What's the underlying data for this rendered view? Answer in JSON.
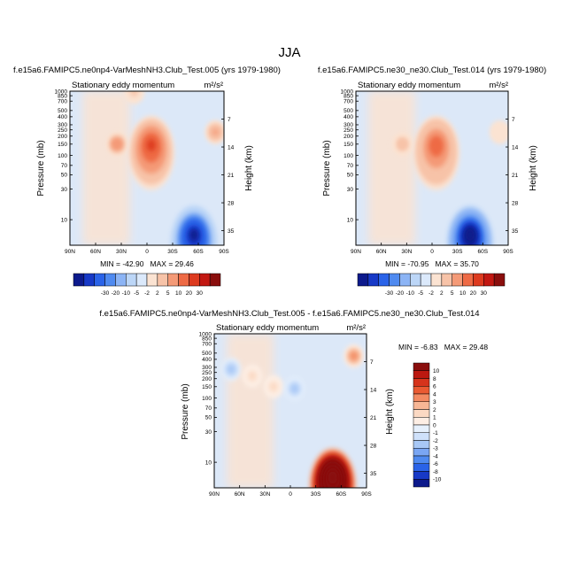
{
  "figure": {
    "title": "JJA"
  },
  "colors": {
    "diverging_scale": [
      "#0d1a8c",
      "#1739c7",
      "#2a63e8",
      "#4f8af0",
      "#8cb4f5",
      "#bcd6f7",
      "#dbe9fb",
      "#fbe3d2",
      "#f7c3a8",
      "#f49a77",
      "#ee6a45",
      "#dd3a1f",
      "#c21812",
      "#8a0e0d"
    ],
    "diff_scale": [
      "#0d1a8c",
      "#1739c7",
      "#2a63e8",
      "#4f8af0",
      "#7aa6f3",
      "#a8c8f6",
      "#cfe1fa",
      "#e6f0fc",
      "#fdeee4",
      "#fbd9c3",
      "#f7b695",
      "#f38a62",
      "#ea5a32",
      "#d6341c",
      "#bb1810",
      "#8a0e0d"
    ]
  },
  "chart_data": [
    {
      "type": "heatmap",
      "title": "f.e15a6.FAMIPC5.ne0np4-VarMeshNH3.Club_Test.005 (yrs 1979-1980)",
      "subtitle_left": "Stationary eddy momentum",
      "units": "m²/s²",
      "xlabel": "",
      "ylabel": "Pressure (mb)",
      "ylabel_right": "Height (km)",
      "x_ticks": [
        "90N",
        "60N",
        "30N",
        "0",
        "30S",
        "60S",
        "90S"
      ],
      "x_range": [
        90,
        -90
      ],
      "y_ticks": [
        "10",
        "30",
        "50",
        "70",
        "100",
        "150",
        "200",
        "250",
        "300",
        "400",
        "500",
        "700",
        "850",
        "1000"
      ],
      "y_ticks_right": [
        "35",
        "28",
        "21",
        "14",
        "7"
      ],
      "y_range_mb": [
        1000,
        4
      ],
      "min": -42.9,
      "max": 29.46,
      "stats_text": "MIN = -42.90   MAX = 29.46",
      "colorbar_labels": [
        "-30",
        "-20",
        "-10",
        "-5",
        "-2",
        "2",
        "5",
        "10",
        "20",
        "30"
      ],
      "features": [
        {
          "lat": -55,
          "p": 6,
          "value": -40
        },
        {
          "lat": -5,
          "p": 150,
          "value": 29
        },
        {
          "lat": 35,
          "p": 150,
          "value": 18
        },
        {
          "lat": -80,
          "p": 230,
          "value": 15
        },
        {
          "lat": 15,
          "p": 960,
          "value": 8
        }
      ]
    },
    {
      "type": "heatmap",
      "title": "f.e15a6.FAMIPC5.ne30_ne30.Club_Test.014 (yrs 1979-1980)",
      "subtitle_left": "Stationary eddy momentum",
      "units": "m²/s²",
      "xlabel": "",
      "ylabel": "Pressure (mb)",
      "ylabel_right": "Height (km)",
      "x_ticks": [
        "90N",
        "60N",
        "30N",
        "0",
        "30S",
        "60S",
        "90S"
      ],
      "x_range": [
        90,
        -90
      ],
      "y_ticks": [
        "10",
        "30",
        "50",
        "70",
        "100",
        "150",
        "200",
        "250",
        "300",
        "400",
        "500",
        "700",
        "850",
        "1000"
      ],
      "y_ticks_right": [
        "35",
        "28",
        "21",
        "14",
        "7"
      ],
      "y_range_mb": [
        1000,
        4
      ],
      "min": -70.95,
      "max": 35.7,
      "stats_text": "MIN = -70.95   MAX = 35.70",
      "colorbar_labels": [
        "-30",
        "-20",
        "-10",
        "-5",
        "-2",
        "2",
        "5",
        "10",
        "20",
        "30"
      ],
      "features": [
        {
          "lat": -45,
          "p": 6,
          "value": -70
        },
        {
          "lat": -5,
          "p": 150,
          "value": 35
        },
        {
          "lat": 35,
          "p": 150,
          "value": 16
        },
        {
          "lat": -80,
          "p": 230,
          "value": 8
        }
      ]
    },
    {
      "type": "heatmap",
      "title": "f.e15a6.FAMIPC5.ne0np4-VarMeshNH3.Club_Test.005 - f.e15a6.FAMIPC5.ne30_ne30.Club_Test.014",
      "subtitle_left": "Stationary eddy momentum",
      "units": "m²/s²",
      "xlabel": "",
      "ylabel": "Pressure (mb)",
      "ylabel_right": "Height (km)",
      "x_ticks": [
        "90N",
        "60N",
        "30N",
        "0",
        "30S",
        "60S",
        "90S"
      ],
      "x_range": [
        90,
        -90
      ],
      "y_ticks": [
        "10",
        "30",
        "50",
        "70",
        "100",
        "150",
        "200",
        "250",
        "300",
        "400",
        "500",
        "700",
        "850",
        "1000"
      ],
      "y_ticks_right": [
        "35",
        "28",
        "21",
        "14",
        "7"
      ],
      "y_range_mb": [
        1000,
        4
      ],
      "min": -6.83,
      "max": 29.48,
      "stats_text": "MIN = -6.83   MAX = 29.48",
      "colorbar_labels": [
        "10",
        "8",
        "6",
        "4",
        "3",
        "2",
        "1",
        "0",
        "-1",
        "-2",
        "-3",
        "-4",
        "-6",
        "-8",
        "-10"
      ],
      "features": [
        {
          "lat": -50,
          "p": 6,
          "value": 29
        },
        {
          "lat": -75,
          "p": 450,
          "value": 7
        },
        {
          "lat": 70,
          "p": 280,
          "value": -5
        },
        {
          "lat": 20,
          "p": 150,
          "value": 4
        },
        {
          "lat": -5,
          "p": 140,
          "value": -5
        },
        {
          "lat": 45,
          "p": 220,
          "value": 3
        }
      ]
    }
  ]
}
